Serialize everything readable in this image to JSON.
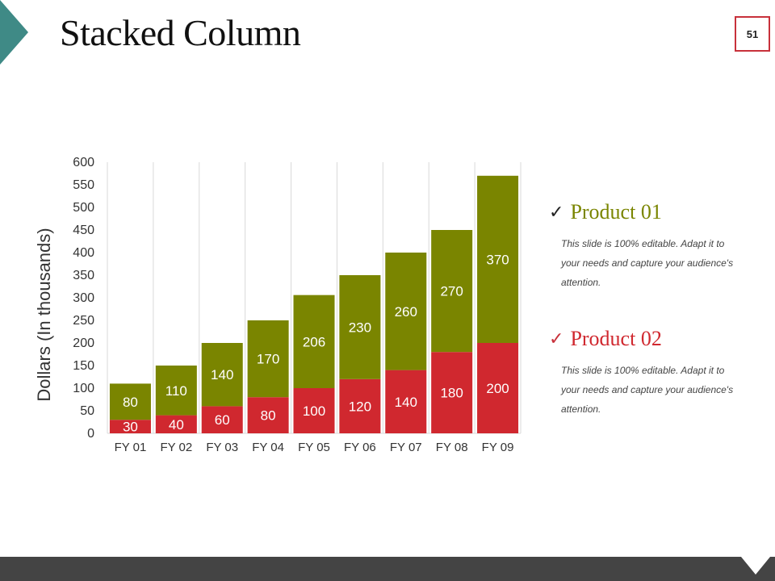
{
  "slide": {
    "title": "Stacked Column",
    "page_number": "51"
  },
  "colors": {
    "teal": "#3f8a86",
    "green": "#7a8500",
    "red": "#d0282f",
    "grid": "#d9d9d9",
    "border_red": "#c8313b",
    "bottom_bar": "#444444"
  },
  "chart_data": {
    "type": "bar",
    "stacked": true,
    "title": "",
    "xlabel": "",
    "ylabel": "Dollars (In thousands)",
    "ylim": [
      0,
      600
    ],
    "yticks": [
      0,
      50,
      100,
      150,
      200,
      250,
      300,
      350,
      400,
      450,
      500,
      550,
      600
    ],
    "categories": [
      "FY 01",
      "FY 02",
      "FY 03",
      "FY 04",
      "FY 05",
      "FY 06",
      "FY 07",
      "FY 08",
      "FY 09"
    ],
    "series": [
      {
        "name": "Product 02",
        "color": "#d0282f",
        "values": [
          30,
          40,
          60,
          80,
          100,
          120,
          140,
          180,
          200
        ]
      },
      {
        "name": "Product 01",
        "color": "#7a8500",
        "values": [
          80,
          110,
          140,
          170,
          206,
          230,
          260,
          270,
          370
        ]
      }
    ]
  },
  "legend": [
    {
      "name": "Product 01",
      "check": "✓",
      "color": "#7a8500",
      "description": "This slide is 100% editable. Adapt it to your needs and capture your audience's attention."
    },
    {
      "name": "Product 02",
      "check": "✓",
      "color": "#d0282f",
      "description": "This slide is 100% editable. Adapt it to your needs and capture your audience's attention."
    }
  ]
}
